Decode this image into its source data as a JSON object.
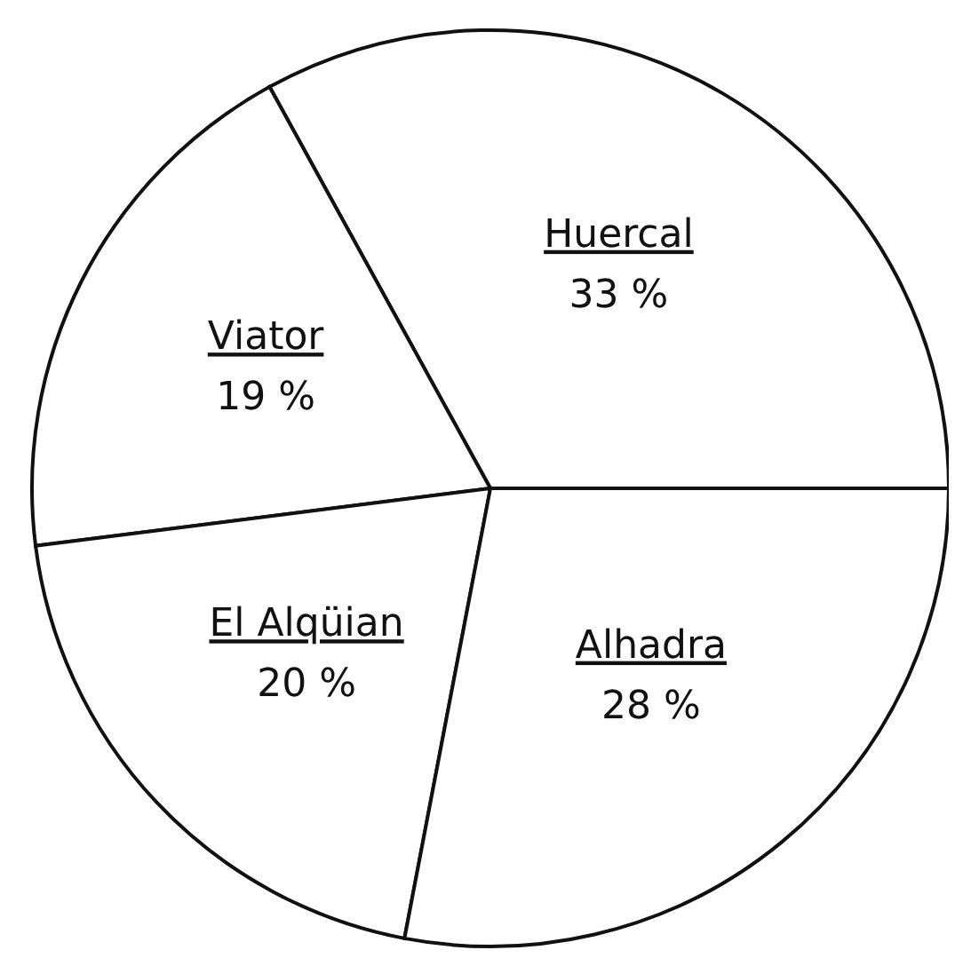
{
  "chart_data": {
    "type": "pie",
    "categories": [
      "Huercal",
      "Viator",
      "El Alqüian",
      "Alhadra"
    ],
    "values": [
      33,
      19,
      20,
      28
    ],
    "value_labels": [
      "33 %",
      "19 %",
      "20 %",
      "28 %"
    ],
    "colors": [
      "#ffffff",
      "#ffffff",
      "#ffffff",
      "#ffffff"
    ],
    "legend": false
  }
}
